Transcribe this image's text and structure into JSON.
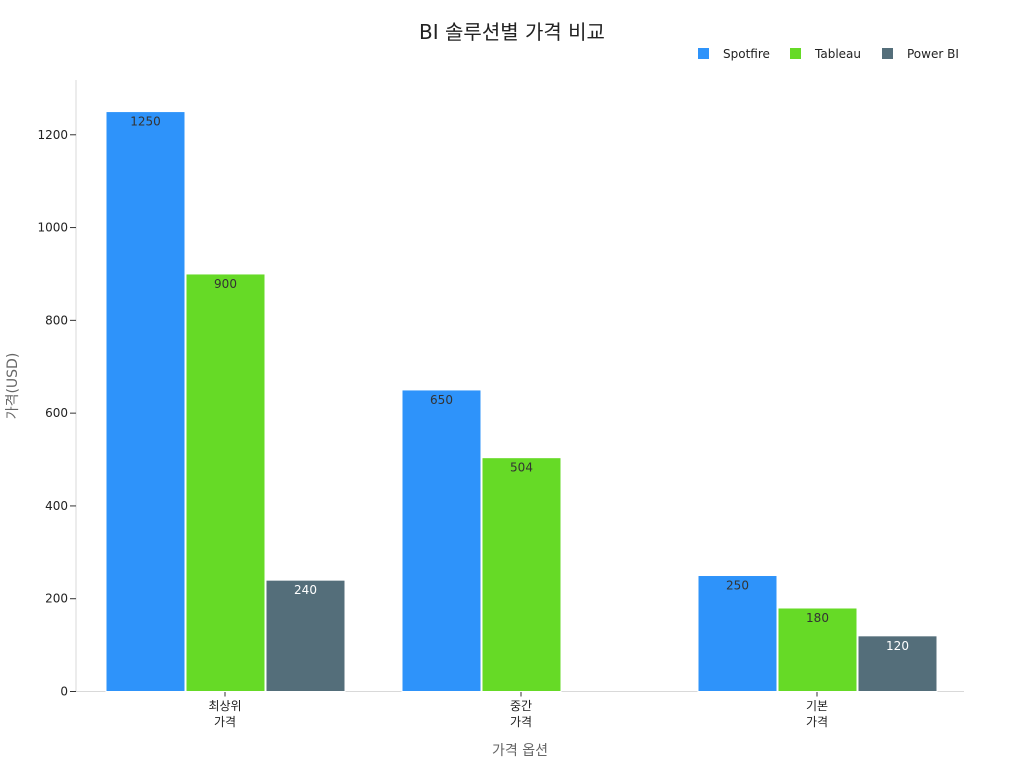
{
  "chart_data": {
    "type": "bar",
    "title": "BI 솔루션별 가격 비교",
    "xlabel": "가격 옵션",
    "ylabel": "가격(USD)",
    "categories": [
      [
        "최상위",
        "가격"
      ],
      [
        "중간",
        "가격"
      ],
      [
        "기본",
        "가격"
      ]
    ],
    "series": [
      {
        "name": "Spotfire",
        "color": "#2E93FA",
        "label_color": "#333333",
        "values": [
          1250,
          650,
          250
        ]
      },
      {
        "name": "Tableau",
        "color": "#66DA26",
        "label_color": "#333333",
        "values": [
          900,
          504,
          180
        ]
      },
      {
        "name": "Power BI",
        "color": "#546E7A",
        "label_color": "#ffffff",
        "values": [
          240,
          null,
          120
        ]
      }
    ],
    "ylim": [
      0,
      1320
    ],
    "yticks": [
      0,
      200,
      400,
      600,
      800,
      1000,
      1200
    ],
    "legend_position": "top-right",
    "grid": false
  }
}
